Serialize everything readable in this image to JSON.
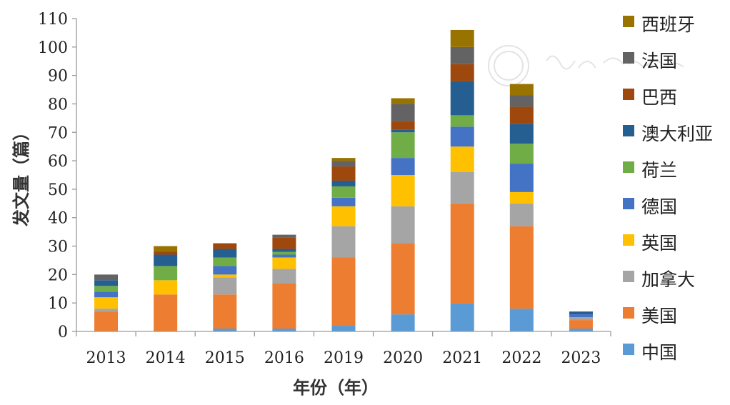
{
  "chart_data": {
    "type": "bar",
    "stacked": true,
    "xlabel": "年份（年）",
    "ylabel": "发文量（篇）",
    "ylim": [
      0,
      110
    ],
    "yticks": [
      0,
      10,
      20,
      30,
      40,
      50,
      60,
      70,
      80,
      90,
      100,
      110
    ],
    "categories": [
      "2013",
      "2014",
      "2015",
      "2016",
      "2019",
      "2020",
      "2021",
      "2022",
      "2023"
    ],
    "legend_position": "right",
    "series": [
      {
        "name": "中国",
        "color": "#5B9BD5",
        "values": [
          0,
          0,
          1,
          1,
          2,
          6,
          10,
          8,
          1
        ]
      },
      {
        "name": "美国",
        "color": "#ED7D31",
        "values": [
          7,
          13,
          12,
          16,
          24,
          25,
          35,
          29,
          3
        ]
      },
      {
        "name": "加拿大",
        "color": "#A5A5A5",
        "values": [
          1,
          0,
          6,
          5,
          11,
          13,
          11,
          8,
          1
        ]
      },
      {
        "name": "英国",
        "color": "#FFC000",
        "values": [
          4,
          5,
          1,
          4,
          7,
          11,
          9,
          4,
          0
        ]
      },
      {
        "name": "德国",
        "color": "#4472C4",
        "values": [
          2,
          0,
          3,
          1,
          3,
          6,
          7,
          10,
          1
        ]
      },
      {
        "name": "荷兰",
        "color": "#70AD47",
        "values": [
          2,
          5,
          3,
          1,
          4,
          9,
          4,
          7,
          0
        ]
      },
      {
        "name": "澳大利亚",
        "color": "#255E91",
        "values": [
          2,
          4,
          3,
          1,
          2,
          1,
          12,
          7,
          1
        ]
      },
      {
        "name": "巴西",
        "color": "#9E480E",
        "values": [
          0,
          1,
          2,
          4,
          5,
          3,
          6,
          6,
          0
        ]
      },
      {
        "name": "法国",
        "color": "#636363",
        "values": [
          2,
          0,
          0,
          1,
          2,
          6,
          6,
          4,
          0
        ]
      },
      {
        "name": "西班牙",
        "color": "#997300",
        "values": [
          0,
          2,
          0,
          0,
          1,
          2,
          6,
          4,
          0
        ]
      }
    ]
  }
}
